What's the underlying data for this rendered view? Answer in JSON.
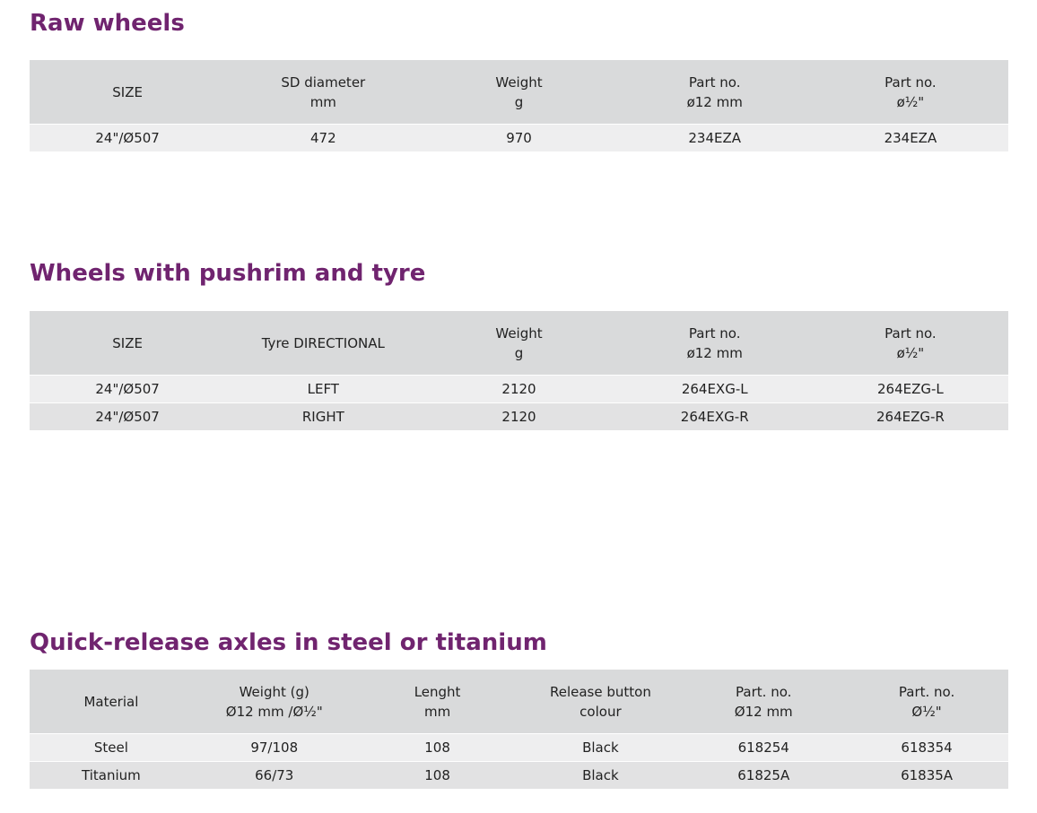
{
  "sections": [
    {
      "title": "Raw wheels",
      "table": {
        "header": [
          [
            "SIZE"
          ],
          [
            "SD diameter",
            "mm"
          ],
          [
            "Weight",
            "g"
          ],
          [
            "Part no.",
            "ø12 mm"
          ],
          [
            "Part no.",
            "ø½\""
          ]
        ],
        "rows": [
          [
            "24\"/Ø507",
            "472",
            "970",
            "234EZA",
            "234EZA"
          ]
        ]
      }
    },
    {
      "title": "Wheels with pushrim and tyre",
      "table": {
        "header": [
          [
            "SIZE"
          ],
          [
            "Tyre DIRECTIONAL"
          ],
          [
            "Weight",
            "g"
          ],
          [
            "Part no.",
            "ø12 mm"
          ],
          [
            "Part no.",
            "ø½\""
          ]
        ],
        "rows": [
          [
            "24\"/Ø507",
            "LEFT",
            "2120",
            "264EXG-L",
            "264EZG-L"
          ],
          [
            "24\"/Ø507",
            "RIGHT",
            "2120",
            "264EXG-R",
            "264EZG-R"
          ]
        ]
      }
    },
    {
      "title": "Quick-release axles in steel or titanium",
      "table": {
        "header": [
          [
            "Material"
          ],
          [
            "Weight (g)",
            "Ø12 mm /Ø½\""
          ],
          [
            "Lenght",
            "mm"
          ],
          [
            "Release button",
            "colour"
          ],
          [
            "Part. no.",
            "Ø12 mm"
          ],
          [
            "Part. no.",
            "Ø½\""
          ]
        ],
        "rows": [
          [
            "Steel",
            "97/108",
            "108",
            "Black",
            "618254",
            "618354"
          ],
          [
            "Titanium",
            "66/73",
            "108",
            "Black",
            "61825A",
            "61835A"
          ]
        ]
      }
    }
  ]
}
